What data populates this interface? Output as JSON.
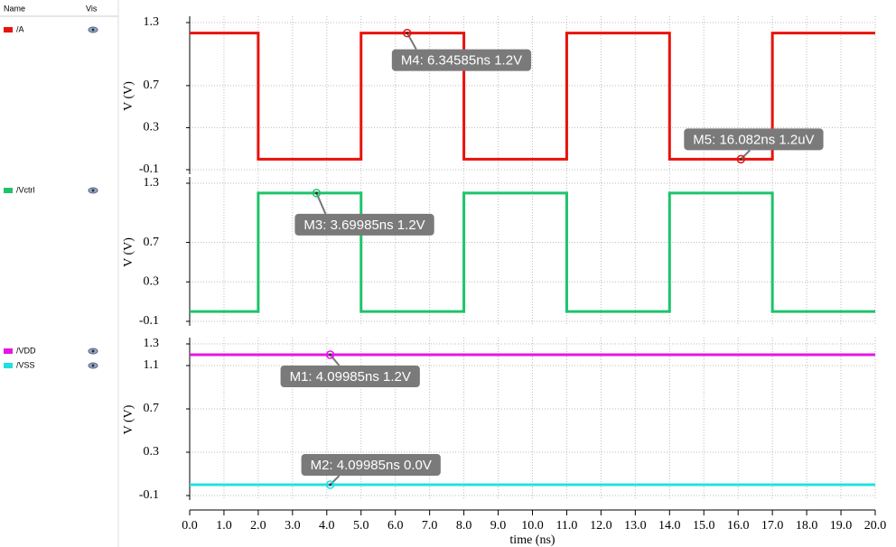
{
  "legend_header": {
    "name": "Name",
    "vis": "Vis"
  },
  "chart_data": [
    {
      "type": "line",
      "ylabel": "V (V)",
      "xlim": [
        0,
        20
      ],
      "ylim": [
        -0.1,
        1.3
      ],
      "yticks": [
        -0.1,
        0.3,
        0.7,
        1.3
      ],
      "grid": true,
      "series": [
        {
          "name": "/A",
          "color": "#e8120c",
          "x": [
            0,
            2,
            2,
            5,
            5,
            8,
            8,
            11,
            11,
            14,
            14,
            17,
            17,
            20
          ],
          "values": [
            1.2,
            1.2,
            0,
            0,
            1.2,
            1.2,
            0,
            0,
            1.2,
            1.2,
            0,
            0,
            1.2,
            1.2
          ]
        }
      ],
      "markers": [
        {
          "label": "M4: 6.34585ns 1.2V",
          "x": 6.34585,
          "y": 1.2
        },
        {
          "label": "M5: 16.082ns 1.2uV",
          "x": 16.082,
          "y": 1.2e-06
        }
      ]
    },
    {
      "type": "line",
      "ylabel": "V (V)",
      "xlim": [
        0,
        20
      ],
      "ylim": [
        -0.1,
        1.3
      ],
      "yticks": [
        -0.1,
        0.3,
        0.7,
        1.3
      ],
      "grid": true,
      "series": [
        {
          "name": "/Vctrl",
          "color": "#1ec36a",
          "x": [
            0,
            2,
            2,
            5,
            5,
            8,
            8,
            11,
            11,
            14,
            14,
            17,
            17,
            20
          ],
          "values": [
            0,
            0,
            1.2,
            1.2,
            0,
            0,
            1.2,
            1.2,
            0,
            0,
            1.2,
            1.2,
            0,
            0
          ]
        }
      ],
      "markers": [
        {
          "label": "M3: 3.69985ns 1.2V",
          "x": 3.69985,
          "y": 1.2
        }
      ]
    },
    {
      "type": "line",
      "ylabel": "V (V)",
      "xlabel": "time (ns)",
      "xlim": [
        0,
        20
      ],
      "ylim": [
        -0.1,
        1.3
      ],
      "yticks": [
        -0.1,
        0.3,
        0.7,
        1.1,
        1.3
      ],
      "grid": true,
      "xticks": [
        {
          "value": 0,
          "label": "0.0"
        },
        {
          "value": 1,
          "label": "1.0"
        },
        {
          "value": 2,
          "label": "2.0"
        },
        {
          "value": 3,
          "label": "3.0"
        },
        {
          "value": 4,
          "label": "4.0"
        },
        {
          "value": 5,
          "label": "5.0"
        },
        {
          "value": 6,
          "label": "6.0"
        },
        {
          "value": 7,
          "label": "7.0"
        },
        {
          "value": 8,
          "label": "8.0"
        },
        {
          "value": 9,
          "label": "9.0"
        },
        {
          "value": 10,
          "label": "10.0"
        },
        {
          "value": 11,
          "label": "11.0"
        },
        {
          "value": 12,
          "label": "12.0"
        },
        {
          "value": 13,
          "label": "13.0"
        },
        {
          "value": 14,
          "label": "14.0"
        },
        {
          "value": 15,
          "label": "15.0"
        },
        {
          "value": 16,
          "label": "16.0"
        },
        {
          "value": 17,
          "label": "17.0"
        },
        {
          "value": 18,
          "label": "18.0"
        },
        {
          "value": 19,
          "label": "19.0"
        },
        {
          "value": 20,
          "label": "20.0"
        }
      ],
      "series": [
        {
          "name": "/VDD",
          "color": "#e615e6",
          "x": [
            0,
            20
          ],
          "values": [
            1.2,
            1.2
          ]
        },
        {
          "name": "/VSS",
          "color": "#22e0e0",
          "x": [
            0,
            20
          ],
          "values": [
            0,
            0
          ]
        }
      ],
      "markers": [
        {
          "label": "M1: 4.09985ns 1.2V",
          "x": 4.09985,
          "y": 1.2
        },
        {
          "label": "M2: 4.09985ns 0.0V",
          "x": 4.09985,
          "y": 0
        }
      ]
    }
  ]
}
